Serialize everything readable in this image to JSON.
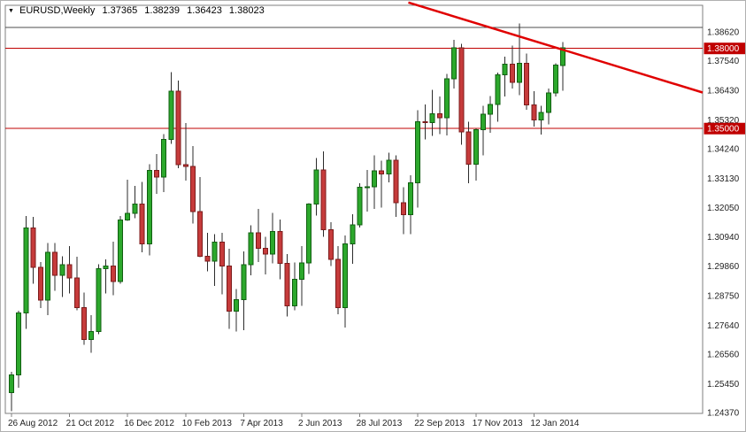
{
  "header": {
    "symbol": "EURUSD,Weekly",
    "open": "1.37365",
    "high": "1.38239",
    "low": "1.36423",
    "close": "1.38023",
    "dropdown_icon": "▼"
  },
  "chart_data": {
    "type": "candlestick",
    "title": "EURUSD,Weekly",
    "symbol": "EURUSD",
    "timeframe": "Weekly",
    "grid": false,
    "current_bar": {
      "open": 1.37365,
      "high": 1.38239,
      "low": 1.36423,
      "close": 1.38023
    },
    "y_axis": {
      "side": "right",
      "decimals": 5,
      "min": 1.2437,
      "max": 1.3905,
      "ticks": [
        "1.38620",
        "1.37540",
        "1.36430",
        "1.35320",
        "1.34240",
        "1.33130",
        "1.32050",
        "1.30940",
        "1.29860",
        "1.28750",
        "1.27640",
        "1.26560",
        "1.25450",
        "1.24370"
      ]
    },
    "x_axis": {
      "labels": [
        {
          "i": 0,
          "t": "26 Aug 2012"
        },
        {
          "i": 8,
          "t": "21 Oct 2012"
        },
        {
          "i": 16,
          "t": "16 Dec 2012"
        },
        {
          "i": 24,
          "t": "10 Feb 2013"
        },
        {
          "i": 32,
          "t": "7 Apr 2013"
        },
        {
          "i": 40,
          "t": "2 Jun 2013"
        },
        {
          "i": 48,
          "t": "28 Jul 2013"
        },
        {
          "i": 56,
          "t": "22 Sep 2013"
        },
        {
          "i": 64,
          "t": "17 Nov 2013"
        },
        {
          "i": 72,
          "t": "12 Jan 2014"
        }
      ]
    },
    "levels": [
      {
        "price": 1.3878,
        "color": "#4d4d4d",
        "width": 1
      },
      {
        "price": 1.38,
        "color": "#c00000",
        "width": 1,
        "badge": "1.38000"
      },
      {
        "price": 1.35,
        "color": "#c00000",
        "width": 1,
        "badge": "1.35000"
      }
    ],
    "trendline": {
      "color": "#e00000",
      "width": 2.5,
      "points": [
        {
          "x_frac": 0.578,
          "price": 1.3972
        },
        {
          "x_frac": 1.0,
          "price": 1.3635
        }
      ]
    },
    "colors": {
      "up_fill": "#2ca82c",
      "up_stroke": "#115f11",
      "down_fill": "#c63b3b",
      "down_stroke": "#7c1b1b",
      "wick": "#2b2b2b",
      "background": "#ffffff",
      "border": "#7f7f7f",
      "badge_bg": "#c00000",
      "badge_text": "#ffffff"
    },
    "candles": [
      [
        1.2512,
        1.259,
        1.2442,
        1.2578
      ],
      [
        1.2578,
        1.2818,
        1.253,
        1.281
      ],
      [
        1.281,
        1.3172,
        1.275,
        1.3128
      ],
      [
        1.3128,
        1.317,
        1.292,
        1.298
      ],
      [
        1.298,
        1.3,
        1.2828,
        1.2858
      ],
      [
        1.2858,
        1.3072,
        1.2802,
        1.3036
      ],
      [
        1.3036,
        1.3072,
        1.2892,
        1.2951
      ],
      [
        1.2951,
        1.3022,
        1.287,
        1.299
      ],
      [
        1.299,
        1.306,
        1.2882,
        1.294
      ],
      [
        1.294,
        1.302,
        1.282,
        1.283
      ],
      [
        1.283,
        1.2886,
        1.269,
        1.2711
      ],
      [
        1.2711,
        1.2802,
        1.2661,
        1.2741
      ],
      [
        1.2741,
        1.2992,
        1.273,
        1.2975
      ],
      [
        1.2975,
        1.301,
        1.2882,
        1.2986
      ],
      [
        1.2986,
        1.3076,
        1.2876,
        1.2928
      ],
      [
        1.2928,
        1.3173,
        1.292,
        1.3158
      ],
      [
        1.3158,
        1.3308,
        1.3155,
        1.3183
      ],
      [
        1.3183,
        1.3285,
        1.3165,
        1.3218
      ],
      [
        1.3218,
        1.33,
        1.3037,
        1.3069
      ],
      [
        1.3069,
        1.3366,
        1.3025,
        1.3343
      ],
      [
        1.3343,
        1.3404,
        1.3255,
        1.3318
      ],
      [
        1.3318,
        1.348,
        1.3262,
        1.3459
      ],
      [
        1.3459,
        1.3711,
        1.3443,
        1.364
      ],
      [
        1.364,
        1.368,
        1.3352,
        1.3365
      ],
      [
        1.3365,
        1.352,
        1.3305,
        1.3358
      ],
      [
        1.3358,
        1.3434,
        1.3145,
        1.319
      ],
      [
        1.319,
        1.3319,
        1.3018,
        1.3022
      ],
      [
        1.3022,
        1.311,
        1.2965,
        1.3004
      ],
      [
        1.3004,
        1.3105,
        1.2911,
        1.3075
      ],
      [
        1.3075,
        1.311,
        1.288,
        1.2986
      ],
      [
        1.2986,
        1.305,
        1.275,
        1.2817
      ],
      [
        1.2817,
        1.29,
        1.274,
        1.286
      ],
      [
        1.286,
        1.304,
        1.2746,
        1.2991
      ],
      [
        1.2991,
        1.3138,
        1.295,
        1.311
      ],
      [
        1.311,
        1.32,
        1.3,
        1.3052
      ],
      [
        1.3052,
        1.3094,
        1.2954,
        1.303
      ],
      [
        1.303,
        1.3185,
        1.2995,
        1.3115
      ],
      [
        1.3115,
        1.316,
        1.2935,
        1.2995
      ],
      [
        1.2995,
        1.303,
        1.2796,
        1.2836
      ],
      [
        1.2836,
        1.2998,
        1.282,
        1.2936
      ],
      [
        1.2936,
        1.306,
        1.2837,
        1.2997
      ],
      [
        1.2997,
        1.322,
        1.2955,
        1.3217
      ],
      [
        1.3217,
        1.339,
        1.3175,
        1.3345
      ],
      [
        1.3345,
        1.3415,
        1.3095,
        1.3122
      ],
      [
        1.3122,
        1.315,
        1.2985,
        1.301
      ],
      [
        1.301,
        1.306,
        1.2805,
        1.283
      ],
      [
        1.283,
        1.31,
        1.2755,
        1.3068
      ],
      [
        1.3068,
        1.318,
        1.2993,
        1.314
      ],
      [
        1.314,
        1.3296,
        1.313,
        1.328
      ],
      [
        1.328,
        1.3345,
        1.319,
        1.3282
      ],
      [
        1.3282,
        1.34,
        1.32,
        1.3341
      ],
      [
        1.3341,
        1.338,
        1.3205,
        1.333
      ],
      [
        1.333,
        1.341,
        1.3298,
        1.3382
      ],
      [
        1.3382,
        1.34,
        1.317,
        1.3222
      ],
      [
        1.3222,
        1.328,
        1.3105,
        1.3178
      ],
      [
        1.3178,
        1.3325,
        1.3104,
        1.3297
      ],
      [
        1.3297,
        1.3569,
        1.3205,
        1.3525
      ],
      [
        1.3525,
        1.359,
        1.346,
        1.3522
      ],
      [
        1.3522,
        1.3645,
        1.3472,
        1.3555
      ],
      [
        1.3555,
        1.362,
        1.348,
        1.354
      ],
      [
        1.354,
        1.3705,
        1.3475,
        1.3686
      ],
      [
        1.3686,
        1.3832,
        1.365,
        1.3802
      ],
      [
        1.3802,
        1.3818,
        1.344,
        1.3487
      ],
      [
        1.3487,
        1.3525,
        1.3295,
        1.3367
      ],
      [
        1.3367,
        1.35,
        1.3305,
        1.3495
      ],
      [
        1.3495,
        1.3585,
        1.34,
        1.3554
      ],
      [
        1.3554,
        1.3622,
        1.3485,
        1.359
      ],
      [
        1.359,
        1.371,
        1.3525,
        1.3702
      ],
      [
        1.3702,
        1.377,
        1.362,
        1.3741
      ],
      [
        1.3741,
        1.3811,
        1.365,
        1.3673
      ],
      [
        1.3673,
        1.3893,
        1.3625,
        1.3745
      ],
      [
        1.3745,
        1.378,
        1.357,
        1.3588
      ],
      [
        1.3588,
        1.364,
        1.3508,
        1.3533
      ],
      [
        1.3533,
        1.3585,
        1.3477,
        1.356
      ],
      [
        1.356,
        1.365,
        1.3515,
        1.3634
      ],
      [
        1.3634,
        1.3745,
        1.362,
        1.3737
      ],
      [
        1.37365,
        1.38239,
        1.36423,
        1.38023
      ]
    ]
  }
}
